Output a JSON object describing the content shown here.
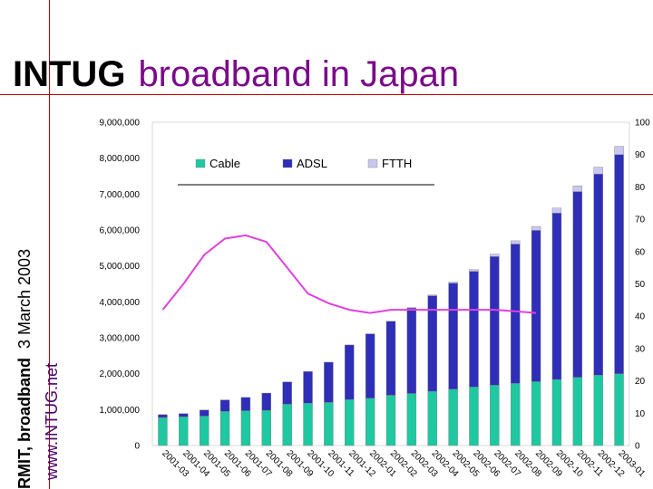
{
  "slide": {
    "title_bold": "INTUG",
    "title_rest": "broadband in Japan",
    "side_bold": "RMIT, broadband",
    "side_date": "3 March 2003",
    "side_url": "www.INTUG.net"
  },
  "chart_data": {
    "type": "bar",
    "stacked": true,
    "categories": [
      "2001-03",
      "2001-04",
      "2001-05",
      "2001-06",
      "2001-07",
      "2001-08",
      "2001-09",
      "2001-10",
      "2001-11",
      "2001-12",
      "2002-01",
      "2002-02",
      "2002-03",
      "2002-04",
      "2002-05",
      "2002-06",
      "2002-07",
      "2002-08",
      "2002-09",
      "2002-10",
      "2002-11",
      "2002-12",
      "2003-01"
    ],
    "series": [
      {
        "name": "Cable",
        "color": "#1ec8a0",
        "values": [
          780000,
          800000,
          820000,
          950000,
          970000,
          980000,
          1150000,
          1180000,
          1200000,
          1280000,
          1320000,
          1400000,
          1450000,
          1510000,
          1570000,
          1630000,
          1680000,
          1730000,
          1780000,
          1840000,
          1900000,
          1960000,
          2000000
        ]
      },
      {
        "name": "ADSL",
        "color": "#2e2eb8",
        "values": [
          80000,
          90000,
          170000,
          320000,
          370000,
          480000,
          620000,
          880000,
          1120000,
          1520000,
          1790000,
          2060000,
          2380000,
          2660000,
          2950000,
          3220000,
          3580000,
          3880000,
          4210000,
          4630000,
          5170000,
          5600000,
          6100000
        ]
      },
      {
        "name": "FTTH",
        "color": "#c8c8f0",
        "values": [
          0,
          0,
          0,
          0,
          0,
          0,
          0,
          0,
          0,
          0,
          0,
          0,
          10000,
          20000,
          30000,
          50000,
          70000,
          90000,
          110000,
          140000,
          160000,
          190000,
          230000
        ]
      },
      {
        "name": "",
        "type": "line",
        "axis": "right",
        "color": "#e040e0",
        "values": [
          42,
          50,
          59,
          64,
          65,
          63,
          55,
          47,
          44,
          42,
          41,
          42,
          42,
          42,
          42,
          42,
          42,
          41.5,
          41,
          null,
          null,
          null,
          null
        ]
      }
    ],
    "ylim": [
      0,
      9000000
    ],
    "y2lim": [
      0,
      100
    ],
    "yticks": [
      "0",
      "1,000,000",
      "2,000,000",
      "3,000,000",
      "4,000,000",
      "5,000,000",
      "6,000,000",
      "7,000,000",
      "8,000,000",
      "9,000,000"
    ],
    "y2ticks": [
      "0",
      "10",
      "20",
      "30",
      "40",
      "50",
      "60",
      "70",
      "80",
      "90",
      "100"
    ],
    "legend": {
      "placement": "top-left"
    },
    "grid": false
  }
}
